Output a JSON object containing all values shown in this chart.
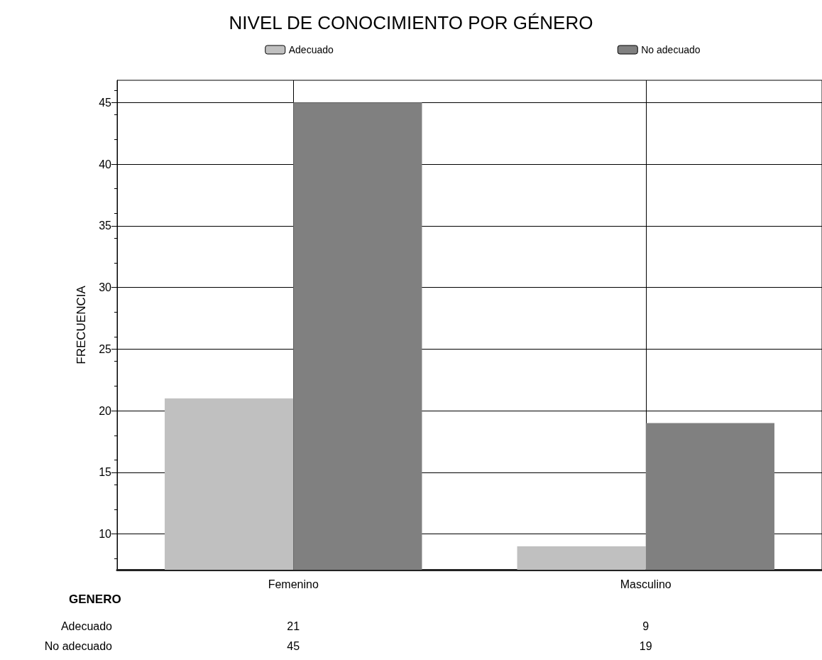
{
  "chart_data": {
    "type": "bar",
    "title": "NIVEL DE CONOCIMIENTO POR GÉNERO",
    "xlabel": "GENERO",
    "ylabel": "FRECUENCIA",
    "categories": [
      "Femenino",
      "Masculino"
    ],
    "series": [
      {
        "name": "Adecuado",
        "color": "#c0c0c0",
        "values": [
          21,
          9
        ]
      },
      {
        "name": "No adecuado",
        "color": "#808080",
        "values": [
          45,
          19
        ]
      }
    ],
    "ylim": [
      7.1,
      46.8
    ],
    "yticks": [
      10,
      15,
      20,
      25,
      30,
      35,
      40,
      45
    ],
    "grid": true,
    "legend": "top",
    "data_labels": true
  }
}
